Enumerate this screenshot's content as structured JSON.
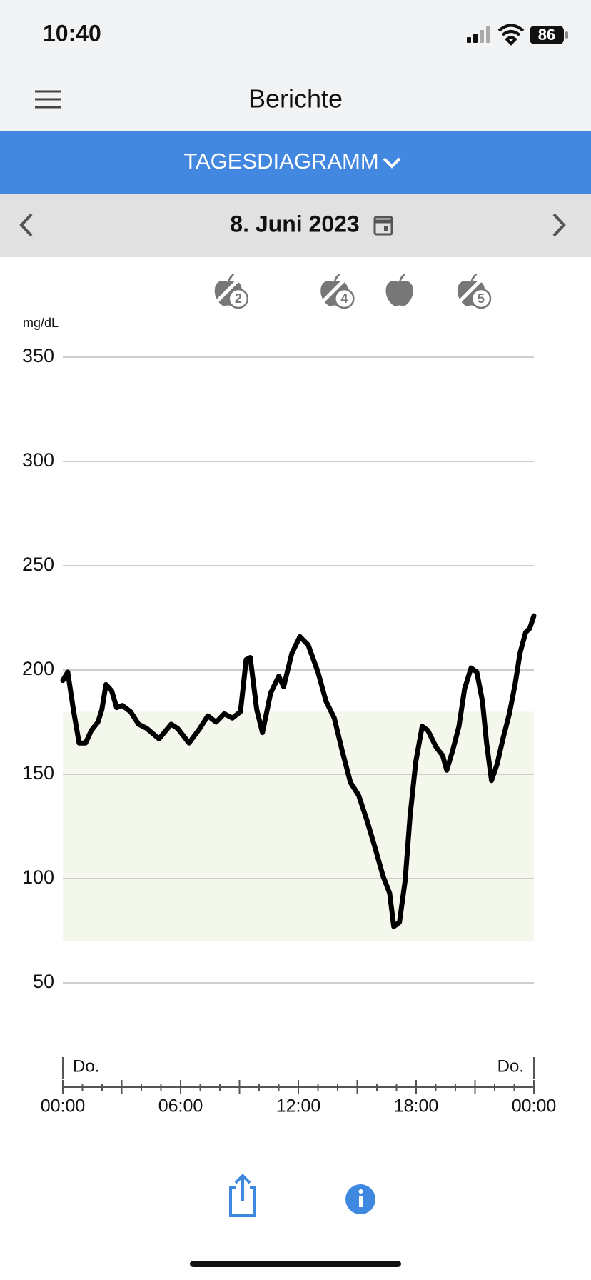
{
  "status_bar": {
    "time": "10:40",
    "battery": "86"
  },
  "header": {
    "title": "Berichte"
  },
  "report_selector": {
    "label": "TAGESDIAGRAMM"
  },
  "date_bar": {
    "date": "8. Juni 2023"
  },
  "chart_data": {
    "type": "line",
    "y_label": "mg/dL",
    "x": [
      0,
      0.25,
      0.54,
      0.83,
      1.16,
      1.45,
      1.79,
      1.99,
      2.2,
      2.49,
      2.74,
      3.03,
      3.45,
      3.86,
      4.28,
      4.9,
      5.52,
      5.85,
      6.43,
      6.98,
      7.39,
      7.81,
      8.22,
      8.64,
      9.05,
      9.34,
      9.55,
      9.88,
      10.17,
      10.59,
      11,
      11.25,
      11.67,
      12.08,
      12.5,
      13,
      13.41,
      13.83,
      14.24,
      14.66,
      15.07,
      15.49,
      15.9,
      16.32,
      16.65,
      16.86,
      17.15,
      17.44,
      17.69,
      17.98,
      18.31,
      18.6,
      19.02,
      19.35,
      19.56,
      19.85,
      20.18,
      20.47,
      20.8,
      21.09,
      21.38,
      21.59,
      21.84,
      22.13,
      22.42,
      22.75,
      23.04,
      23.29,
      23.58,
      23.79,
      24
    ],
    "values": [
      195,
      199,
      181,
      165,
      165,
      171,
      175,
      181,
      193,
      190,
      182,
      183,
      180,
      174,
      172,
      167,
      174,
      172,
      165,
      172,
      178,
      175,
      179,
      177,
      180,
      205,
      206,
      181,
      170,
      189,
      197,
      192,
      208,
      216,
      212,
      199,
      185,
      177,
      161,
      146,
      140,
      128,
      115,
      101,
      93,
      77,
      79,
      99,
      130,
      156,
      173,
      171,
      163,
      159,
      152,
      161,
      173,
      191,
      201,
      199,
      185,
      165,
      147,
      155,
      167,
      179,
      193,
      208,
      218,
      220,
      226
    ],
    "color": "#000000",
    "target_range": [
      70,
      180
    ],
    "target_color": "#f4f7ec",
    "xlim": [
      0,
      24
    ],
    "ylim": [
      0,
      350
    ],
    "yticks": [
      50,
      100,
      150,
      200,
      250,
      300,
      350
    ],
    "xticks": [
      {
        "value": 0,
        "label": "00:00"
      },
      {
        "value": 6,
        "label": "06:00"
      },
      {
        "value": 12,
        "label": "12:00"
      },
      {
        "value": 18,
        "label": "18:00"
      },
      {
        "value": 24,
        "label": "00:00"
      }
    ],
    "minor_xticks": [
      0,
      1,
      2,
      3,
      4,
      5,
      6,
      7,
      8,
      9,
      10,
      11,
      12,
      13,
      14,
      15,
      16,
      17,
      18,
      19,
      20,
      21,
      22,
      23,
      24
    ],
    "day_labels": [
      {
        "x": 0,
        "label": "Do."
      },
      {
        "x": 24,
        "label": "Do."
      }
    ],
    "grid": true,
    "events": [
      {
        "x": 8.43,
        "label": "2"
      },
      {
        "x": 13.83,
        "label": "4"
      },
      {
        "x": 17.15
      },
      {
        "x": 20.8,
        "label": "5"
      }
    ]
  }
}
